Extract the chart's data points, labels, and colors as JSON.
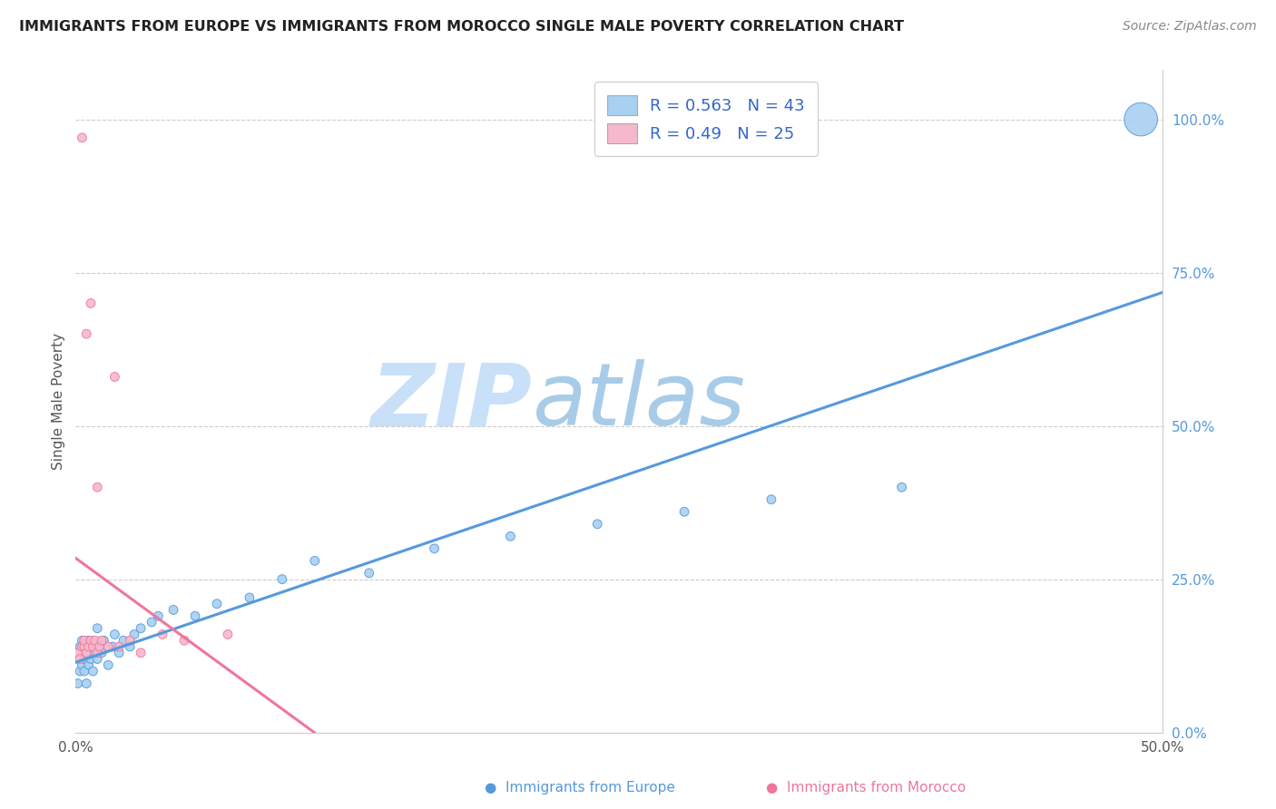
{
  "title": "IMMIGRANTS FROM EUROPE VS IMMIGRANTS FROM MOROCCO SINGLE MALE POVERTY CORRELATION CHART",
  "source": "Source: ZipAtlas.com",
  "ylabel": "Single Male Poverty",
  "xlim": [
    0.0,
    0.5
  ],
  "ylim": [
    0.0,
    1.08
  ],
  "x_ticks": [
    0.0,
    0.1,
    0.2,
    0.3,
    0.4,
    0.5
  ],
  "x_tick_labels": [
    "0.0%",
    "",
    "",
    "",
    "",
    "50.0%"
  ],
  "y_tick_labels_right": [
    "0.0%",
    "25.0%",
    "50.0%",
    "75.0%",
    "100.0%"
  ],
  "y_ticks_right": [
    0.0,
    0.25,
    0.5,
    0.75,
    1.0
  ],
  "europe_R": 0.563,
  "europe_N": 43,
  "morocco_R": 0.49,
  "morocco_N": 25,
  "europe_color": "#A8D0F0",
  "morocco_color": "#F5B8CC",
  "europe_line_color": "#5599DD",
  "morocco_line_color": "#EE7799",
  "watermark_zip_color": "#C8E0F8",
  "watermark_atlas_color": "#A8CCE8",
  "legend_color": "#3366CC",
  "background_color": "#FFFFFF",
  "europe_x": [
    0.001,
    0.002,
    0.002,
    0.003,
    0.003,
    0.004,
    0.004,
    0.005,
    0.005,
    0.006,
    0.006,
    0.007,
    0.008,
    0.009,
    0.01,
    0.01,
    0.011,
    0.012,
    0.013,
    0.015,
    0.017,
    0.018,
    0.02,
    0.022,
    0.025,
    0.027,
    0.03,
    0.035,
    0.038,
    0.045,
    0.055,
    0.065,
    0.08,
    0.095,
    0.11,
    0.135,
    0.165,
    0.2,
    0.24,
    0.28,
    0.32,
    0.38,
    0.49
  ],
  "europe_y": [
    0.08,
    0.1,
    0.14,
    0.11,
    0.15,
    0.12,
    0.1,
    0.13,
    0.08,
    0.11,
    0.15,
    0.12,
    0.1,
    0.13,
    0.12,
    0.17,
    0.14,
    0.13,
    0.15,
    0.11,
    0.14,
    0.16,
    0.13,
    0.15,
    0.14,
    0.16,
    0.17,
    0.18,
    0.19,
    0.2,
    0.19,
    0.21,
    0.22,
    0.25,
    0.28,
    0.26,
    0.3,
    0.32,
    0.34,
    0.36,
    0.38,
    0.4,
    1.0
  ],
  "europe_sizes": [
    50,
    50,
    50,
    50,
    50,
    50,
    50,
    50,
    50,
    50,
    50,
    50,
    50,
    50,
    50,
    50,
    50,
    50,
    50,
    50,
    50,
    50,
    50,
    50,
    50,
    50,
    50,
    50,
    50,
    50,
    50,
    50,
    50,
    50,
    50,
    50,
    50,
    50,
    50,
    50,
    50,
    50,
    700
  ],
  "morocco_x": [
    0.001,
    0.002,
    0.003,
    0.003,
    0.004,
    0.004,
    0.005,
    0.005,
    0.006,
    0.007,
    0.007,
    0.008,
    0.009,
    0.01,
    0.01,
    0.011,
    0.012,
    0.015,
    0.018,
    0.02,
    0.025,
    0.03,
    0.04,
    0.05,
    0.07
  ],
  "morocco_y": [
    0.13,
    0.12,
    0.14,
    0.97,
    0.14,
    0.15,
    0.65,
    0.13,
    0.14,
    0.15,
    0.7,
    0.14,
    0.15,
    0.13,
    0.4,
    0.14,
    0.15,
    0.14,
    0.58,
    0.14,
    0.15,
    0.13,
    0.16,
    0.15,
    0.16
  ],
  "morocco_sizes": [
    50,
    50,
    50,
    50,
    50,
    50,
    50,
    50,
    50,
    50,
    50,
    50,
    50,
    50,
    50,
    50,
    50,
    50,
    50,
    50,
    50,
    50,
    50,
    50,
    50
  ]
}
